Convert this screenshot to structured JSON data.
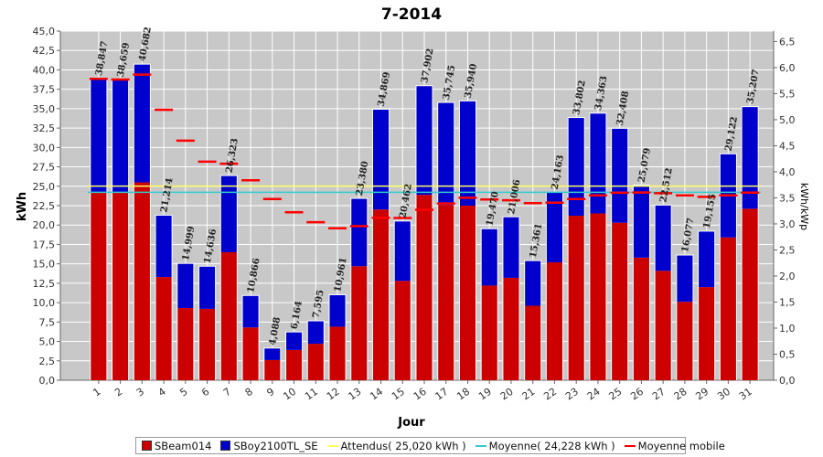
{
  "chart_data": {
    "type": "bar",
    "title": "7-2014",
    "xlabel": "Jour",
    "ylabel": "kWh",
    "y2label": "kWh/kWp",
    "ylim": [
      0,
      45.0
    ],
    "y2lim": [
      0,
      6.7
    ],
    "yticks": [
      "0,0",
      "2,5",
      "5,0",
      "7,5",
      "10,0",
      "12,5",
      "15,0",
      "17,5",
      "20,0",
      "22,5",
      "25,0",
      "27,5",
      "30,0",
      "32,5",
      "35,0",
      "37,5",
      "40,0",
      "42,5",
      "45,0"
    ],
    "y2ticks": [
      "0,0",
      "0,5",
      "1,0",
      "1,5",
      "2,0",
      "2,5",
      "3,0",
      "3,5",
      "4,0",
      "4,5",
      "5,0",
      "5,5",
      "6,0",
      "6,5"
    ],
    "grid": true,
    "legend_position": "bottom",
    "categories": [
      "1",
      "2",
      "3",
      "4",
      "5",
      "6",
      "7",
      "8",
      "9",
      "10",
      "11",
      "12",
      "13",
      "14",
      "15",
      "16",
      "17",
      "18",
      "19",
      "20",
      "21",
      "22",
      "23",
      "24",
      "25",
      "26",
      "27",
      "28",
      "29",
      "30",
      "31"
    ],
    "series": [
      {
        "name": "SBeam014",
        "color": "#cc0000",
        "values": [
          24.2,
          24.2,
          25.5,
          13.3,
          9.3,
          9.2,
          16.5,
          6.8,
          2.6,
          3.9,
          4.7,
          6.9,
          14.7,
          22.0,
          12.8,
          23.9,
          22.6,
          22.5,
          12.2,
          13.2,
          9.6,
          15.2,
          21.2,
          21.5,
          20.3,
          15.8,
          14.1,
          10.1,
          12.0,
          18.4,
          22.1
        ]
      },
      {
        "name": "SBoy2100TL_SE",
        "color": "#0000cc",
        "values": [
          14.647,
          14.459,
          15.182,
          7.914,
          5.699,
          5.436,
          9.823,
          4.066,
          1.488,
          2.264,
          2.895,
          4.061,
          8.68,
          12.869,
          7.662,
          14.002,
          13.145,
          13.44,
          7.27,
          7.806,
          5.761,
          8.963,
          12.602,
          12.863,
          12.108,
          9.279,
          8.412,
          5.977,
          7.155,
          10.722,
          13.107
        ]
      }
    ],
    "totals": [
      "38,847",
      "38,659",
      "40,682",
      "21,214",
      "14,999",
      "14,636",
      "26,323",
      "10,866",
      "4,088",
      "6,164",
      "7,595",
      "10,961",
      "23,380",
      "34,869",
      "20,462",
      "37,902",
      "35,745",
      "35,940",
      "19,470",
      "21,006",
      "15,361",
      "24,163",
      "33,802",
      "34,363",
      "32,408",
      "25,079",
      "22,512",
      "16,077",
      "19,155",
      "29,122",
      "35,207"
    ],
    "totals_values": [
      38.847,
      38.659,
      40.682,
      21.214,
      14.999,
      14.636,
      26.323,
      10.866,
      4.088,
      6.164,
      7.595,
      10.961,
      23.38,
      34.869,
      20.462,
      37.902,
      35.745,
      35.94,
      19.47,
      21.006,
      15.361,
      24.163,
      33.802,
      34.363,
      32.408,
      25.079,
      22.512,
      16.077,
      19.155,
      29.122,
      35.207
    ],
    "attendus": {
      "label": "Attendus( 25,020 kWh )",
      "value": 25.02,
      "color": "#ffff66"
    },
    "moyenne": {
      "label": "Moyenne( 24,228 kWh )",
      "value": 24.228,
      "color": "#33cccc"
    },
    "moyenne_mobile": {
      "label": "Moyenne mobile",
      "color": "#ff0000",
      "values": [
        38.847,
        38.753,
        39.396,
        34.85,
        30.88,
        28.17,
        27.9,
        25.77,
        23.36,
        21.64,
        20.36,
        19.58,
        19.87,
        20.94,
        20.91,
        21.97,
        22.78,
        23.51,
        23.3,
        23.19,
        22.82,
        22.88,
        23.35,
        23.82,
        24.17,
        24.2,
        24.11,
        23.82,
        23.63,
        23.82,
        24.18
      ]
    }
  }
}
